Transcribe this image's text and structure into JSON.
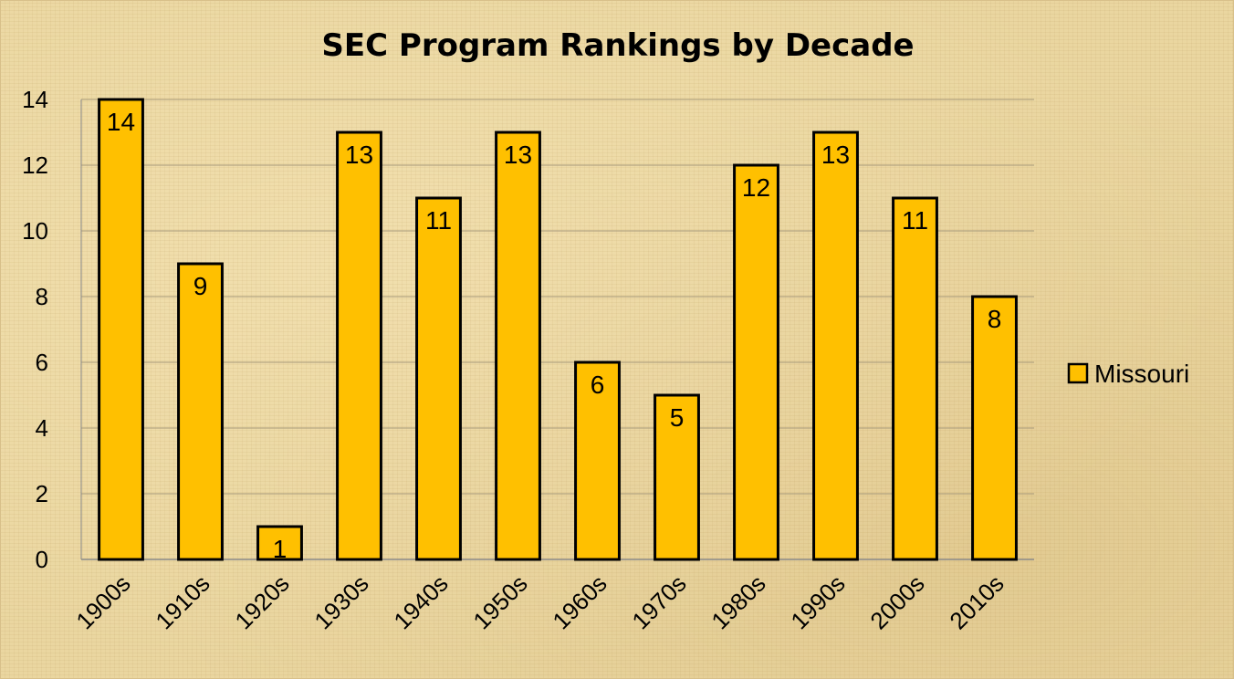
{
  "chart_data": {
    "type": "bar",
    "title": "SEC Program Rankings by Decade",
    "xlabel": "",
    "ylabel": "",
    "categories": [
      "1900s",
      "1910s",
      "1920s",
      "1930s",
      "1940s",
      "1950s",
      "1960s",
      "1970s",
      "1980s",
      "1990s",
      "2000s",
      "2010s"
    ],
    "series": [
      {
        "name": "Missouri",
        "values": [
          14,
          9,
          1,
          13,
          11,
          13,
          6,
          5,
          12,
          13,
          11,
          8
        ],
        "color": "#ffc000"
      }
    ],
    "ylim": [
      0,
      14
    ],
    "yticks": [
      0,
      2,
      4,
      6,
      8,
      10,
      12,
      14
    ],
    "grid": true,
    "legend_position": "right",
    "data_labels": true,
    "x_tick_rotation": -45
  }
}
